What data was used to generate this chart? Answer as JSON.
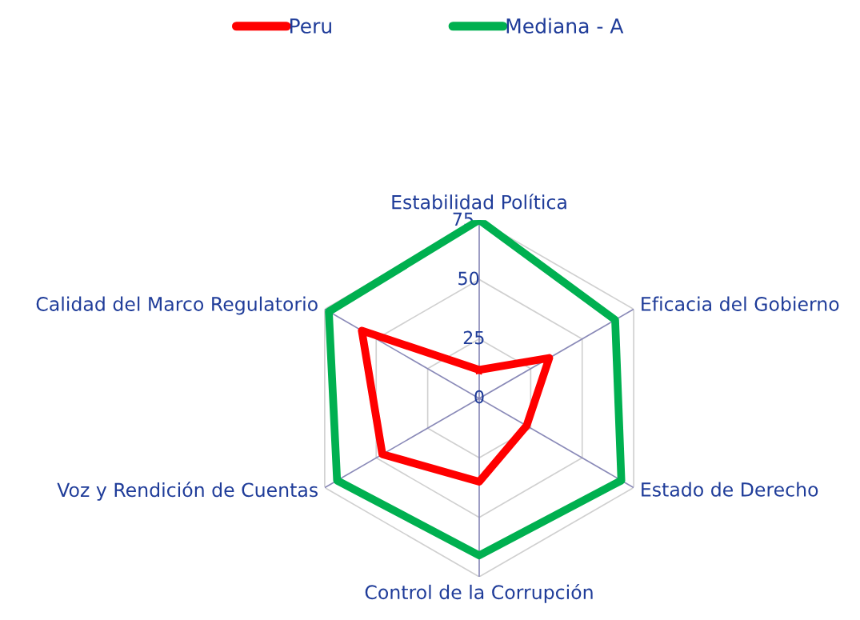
{
  "chart_data": {
    "type": "radar",
    "categories": [
      "Estabilidad Política",
      "Eficacia del Gobierno",
      "Estado de Derecho",
      "Control de la Corrupción",
      "Voz y Rendición de Cuentas",
      "Calidad del Marco Regulatorio"
    ],
    "series": [
      {
        "name": "Peru",
        "color": "#ff0000",
        "values": [
          12,
          34,
          23,
          35,
          47,
          57
        ]
      },
      {
        "name": "Mediana - A",
        "color": "#00b050",
        "values": [
          75,
          66,
          69,
          66,
          69,
          73
        ]
      }
    ],
    "ylim": [
      0,
      75
    ],
    "yticks": [
      0,
      25,
      50,
      75
    ],
    "grid": true,
    "legend": "top",
    "marker": "none",
    "line_style": "solid"
  }
}
